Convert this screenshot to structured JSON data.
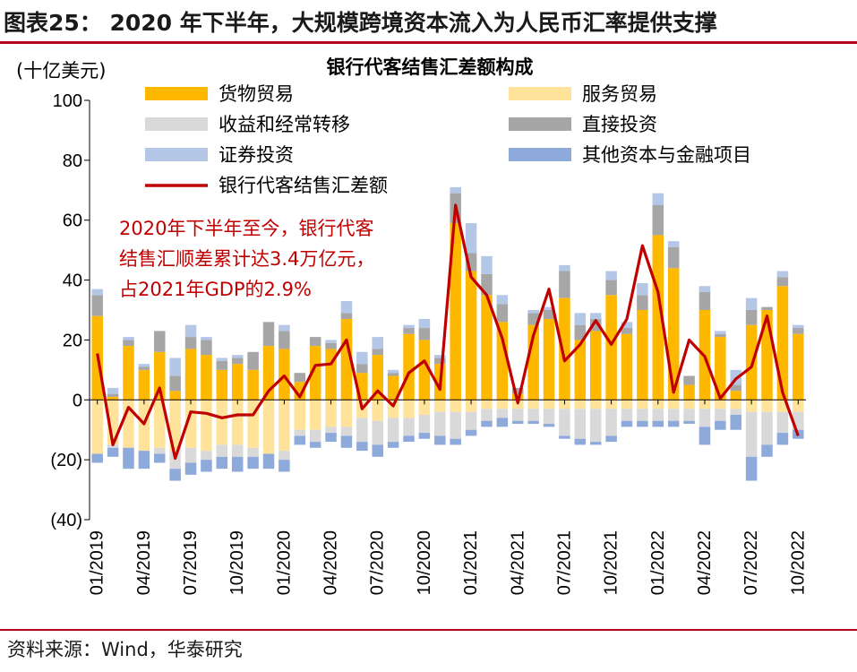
{
  "figure": {
    "title": "图表25：  2020 年下半年，大规模跨境资本流入为人民币汇率提供支撑",
    "source": "资料来源：Wind，华泰研究",
    "colors": {
      "rule": "#b3001b"
    }
  },
  "chart_data": {
    "type": "bar",
    "title": "银行代客结售汇差额构成",
    "ylabel": "(十亿美元)",
    "ylim": [
      -40,
      100
    ],
    "yticks": [
      100,
      80,
      60,
      40,
      20,
      0,
      -20,
      -40
    ],
    "ytick_labels": [
      "100",
      "80",
      "60",
      "40",
      "20",
      "0",
      "(20)",
      "(40)"
    ],
    "stacked": true,
    "categories": [
      "01/2019",
      "02/2019",
      "03/2019",
      "04/2019",
      "05/2019",
      "06/2019",
      "07/2019",
      "08/2019",
      "09/2019",
      "10/2019",
      "11/2019",
      "12/2019",
      "01/2020",
      "02/2020",
      "03/2020",
      "04/2020",
      "05/2020",
      "06/2020",
      "07/2020",
      "08/2020",
      "09/2020",
      "10/2020",
      "11/2020",
      "12/2020",
      "01/2021",
      "02/2021",
      "03/2021",
      "04/2021",
      "05/2021",
      "06/2021",
      "07/2021",
      "08/2021",
      "09/2021",
      "10/2021",
      "11/2021",
      "12/2021",
      "01/2022",
      "02/2022",
      "03/2022",
      "04/2022",
      "05/2022",
      "06/2022",
      "07/2022",
      "08/2022",
      "09/2022",
      "10/2022"
    ],
    "xtick_labels": [
      "01/2019",
      "04/2019",
      "07/2019",
      "10/2019",
      "01/2020",
      "04/2020",
      "07/2020",
      "10/2020",
      "01/2021",
      "04/2021",
      "07/2021",
      "10/2021",
      "01/2022",
      "04/2022",
      "07/2022",
      "10/2022"
    ],
    "series": [
      {
        "name": "货物贸易",
        "kind": "bar",
        "color": "#ffb800",
        "values": [
          28,
          1,
          18,
          10,
          16,
          3,
          17,
          15,
          10,
          12,
          10,
          18,
          17,
          6,
          18,
          17,
          27,
          9,
          15,
          8,
          22,
          20,
          12,
          59,
          43,
          35,
          26,
          2,
          25,
          27,
          34,
          20,
          23,
          35,
          22,
          30,
          55,
          44,
          5,
          30,
          21,
          3,
          25,
          30,
          38,
          22
        ]
      },
      {
        "name": "服务贸易",
        "kind": "bar",
        "color": "#ffe39b",
        "values": [
          -18,
          -15,
          -16,
          -17,
          -16,
          -17,
          -16,
          -17,
          -15,
          -15,
          -16,
          -18,
          -17,
          -10,
          -10,
          -9,
          -9,
          -6,
          -7,
          -6,
          -6,
          -5,
          -4,
          -4,
          -4,
          -3,
          -3,
          -3,
          -3,
          -3,
          -3,
          -3,
          -3,
          -3,
          -3,
          -3,
          -3,
          -3,
          -3,
          -3,
          -3,
          -3,
          -4,
          -4,
          -4,
          -4
        ]
      },
      {
        "name": "收益和经常转移",
        "kind": "bar",
        "color": "#d9d9d9",
        "values": [
          0,
          -1,
          0,
          0,
          -2,
          -6,
          -5,
          -3,
          -4,
          -4,
          -3,
          0,
          -3,
          -2,
          -4,
          -2,
          -3,
          -8,
          -8,
          -8,
          -6,
          -6,
          -8,
          -9,
          -6,
          -4,
          -3,
          -4,
          -4,
          -5,
          -9,
          -10,
          -11,
          -9,
          -4,
          -4,
          -4,
          -4,
          -4,
          -6,
          -4,
          -2,
          -15,
          -11,
          -7,
          -6
        ]
      },
      {
        "name": "直接投资",
        "kind": "bar",
        "color": "#a6a6a6",
        "values": [
          7,
          1,
          2,
          1,
          7,
          5,
          4,
          5,
          3,
          2,
          6,
          8,
          6,
          3,
          3,
          2,
          2,
          3,
          2,
          1,
          2,
          4,
          2,
          10,
          6,
          7,
          6,
          2,
          4,
          3,
          9,
          5,
          4,
          5,
          2,
          5,
          10,
          7,
          3,
          6,
          1,
          2,
          5,
          1,
          3,
          2
        ]
      },
      {
        "name": "证券投资",
        "kind": "bar",
        "color": "#b4c7e7",
        "values": [
          2,
          2,
          1,
          1,
          0,
          6,
          4,
          1,
          1,
          1,
          0,
          0,
          2,
          0,
          0,
          1,
          4,
          4,
          4,
          1,
          1,
          3,
          1,
          2,
          10,
          6,
          3,
          0,
          1,
          1,
          2,
          4,
          2,
          3,
          2,
          4,
          4,
          2,
          0,
          2,
          1,
          5,
          4,
          0,
          2,
          1
        ]
      },
      {
        "name": "其他资本与金融项目",
        "kind": "bar",
        "color": "#8eaadb",
        "values": [
          -3,
          -3,
          -7,
          -6,
          -3,
          -4,
          -4,
          -4,
          -4,
          -5,
          -4,
          -5,
          -4,
          -3,
          -2,
          -3,
          -4,
          -3,
          -4,
          -2,
          -2,
          -2,
          -3,
          -2,
          -2,
          -2,
          -3,
          -1,
          -1,
          -1,
          -1,
          -2,
          -1,
          -2,
          -2,
          -2,
          -2,
          -2,
          -1,
          -6,
          -3,
          -5,
          -8,
          -4,
          -4,
          -3
        ]
      },
      {
        "name": "银行代客结售汇差额",
        "kind": "line",
        "color": "#c00000",
        "values": [
          15.5,
          -15,
          -2.5,
          -8,
          4,
          -19.5,
          -4,
          -4.5,
          -6,
          -5,
          -5,
          3,
          8,
          1,
          11.5,
          12,
          20,
          -3,
          3,
          -2,
          9,
          13,
          3.5,
          65,
          41,
          35,
          20.5,
          -1,
          21.5,
          37,
          13,
          18.5,
          26.5,
          18.5,
          27,
          51.5,
          36,
          2.5,
          20,
          14.5,
          0.5,
          7,
          11,
          28,
          2.5,
          -12
        ]
      }
    ],
    "annotation": {
      "lines": [
        "2020年下半年至今，银行代客",
        "结售汇顺差累计达3.4万亿元，",
        "占2021年GDP的2.9%"
      ],
      "color": "#c00000"
    },
    "legend": {
      "placement": "top",
      "columns": 2
    }
  }
}
